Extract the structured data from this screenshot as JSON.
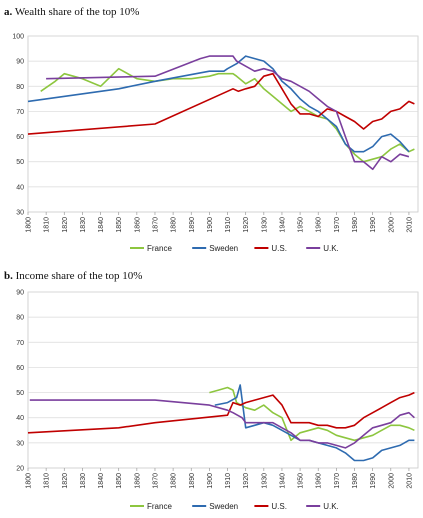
{
  "colors": {
    "France": "#8dc63f",
    "Sweden": "#2e6bb0",
    "U.S.": "#c00000",
    "U.K.": "#7a3f9d"
  },
  "chart_data": [
    {
      "type": "line",
      "title_prefix": "a.",
      "title": "Wealth share of the top 10%",
      "xlim": [
        1800,
        2015
      ],
      "ylim": [
        30,
        100
      ],
      "yticks": [
        30,
        40,
        50,
        60,
        70,
        80,
        90,
        100
      ],
      "xticks": [
        1800,
        1810,
        1820,
        1830,
        1840,
        1850,
        1860,
        1870,
        1880,
        1890,
        1900,
        1910,
        1920,
        1930,
        1940,
        1950,
        1960,
        1970,
        1980,
        1990,
        2000,
        2010
      ],
      "grid": "horizontal",
      "legend": "bottom",
      "series": [
        {
          "name": "France",
          "x": [
            1807,
            1815,
            1820,
            1830,
            1840,
            1850,
            1860,
            1870,
            1880,
            1890,
            1900,
            1905,
            1910,
            1913,
            1915,
            1920,
            1925,
            1930,
            1935,
            1940,
            1945,
            1950,
            1955,
            1960,
            1965,
            1970,
            1975,
            1980,
            1985,
            1990,
            1995,
            2000,
            2005,
            2010,
            2013
          ],
          "y": [
            78,
            82,
            85,
            83,
            80,
            87,
            83,
            82,
            83,
            83,
            84,
            85,
            85,
            85,
            84,
            81,
            83,
            79,
            76,
            73,
            70,
            72,
            70,
            68,
            67,
            63,
            57,
            53,
            50,
            51,
            52,
            55,
            57,
            54,
            55
          ]
        },
        {
          "name": "Sweden",
          "x": [
            1800,
            1850,
            1870,
            1900,
            1908,
            1910,
            1915,
            1920,
            1925,
            1930,
            1935,
            1940,
            1945,
            1950,
            1955,
            1960,
            1965,
            1970,
            1975,
            1980,
            1985,
            1990,
            1995,
            2000,
            2005,
            2010
          ],
          "y": [
            74,
            79,
            82,
            86,
            86,
            87,
            89,
            92,
            91,
            90,
            87,
            82,
            79,
            75,
            72,
            70,
            67,
            64,
            57,
            54,
            54,
            56,
            60,
            61,
            58,
            54
          ]
        },
        {
          "name": "U.S.",
          "x": [
            1800,
            1870,
            1910,
            1913,
            1916,
            1920,
            1925,
            1930,
            1935,
            1940,
            1945,
            1950,
            1955,
            1960,
            1965,
            1970,
            1975,
            1980,
            1985,
            1990,
            1995,
            2000,
            2005,
            2010,
            2013
          ],
          "y": [
            61,
            65,
            78,
            79,
            78,
            79,
            80,
            84,
            85,
            79,
            73,
            69,
            69,
            68,
            71,
            70,
            68,
            66,
            63,
            66,
            67,
            70,
            71,
            74,
            73
          ]
        },
        {
          "name": "U.K.",
          "x": [
            1810,
            1870,
            1895,
            1900,
            1905,
            1910,
            1913,
            1915,
            1920,
            1925,
            1930,
            1935,
            1940,
            1945,
            1950,
            1955,
            1960,
            1965,
            1970,
            1975,
            1980,
            1985,
            1990,
            1995,
            2000,
            2005,
            2010
          ],
          "y": [
            83,
            84,
            91,
            92,
            92,
            92,
            92,
            90,
            88,
            86,
            87,
            86,
            83,
            82,
            80,
            78,
            75,
            72,
            70,
            60,
            50,
            50,
            47,
            52,
            50,
            53,
            52
          ]
        }
      ]
    },
    {
      "type": "line",
      "title_prefix": "b.",
      "title": "Income share of the top 10%",
      "xlim": [
        1800,
        2015
      ],
      "ylim": [
        20,
        90
      ],
      "yticks": [
        20,
        30,
        40,
        50,
        60,
        70,
        80,
        90
      ],
      "xticks": [
        1800,
        1810,
        1820,
        1830,
        1840,
        1850,
        1860,
        1870,
        1880,
        1890,
        1900,
        1910,
        1920,
        1930,
        1940,
        1950,
        1960,
        1970,
        1980,
        1990,
        2000,
        2010
      ],
      "grid": "horizontal",
      "legend": "bottom",
      "series": [
        {
          "name": "France",
          "x": [
            1900,
            1905,
            1910,
            1913,
            1915,
            1920,
            1925,
            1930,
            1935,
            1940,
            1945,
            1950,
            1955,
            1960,
            1965,
            1970,
            1975,
            1980,
            1985,
            1990,
            1995,
            2000,
            2005,
            2010,
            2013
          ],
          "y": [
            50,
            51,
            52,
            51,
            46,
            44,
            43,
            45,
            42,
            40,
            31,
            34,
            35,
            36,
            35,
            33,
            32,
            31,
            32,
            33,
            35,
            37,
            37,
            36,
            35
          ]
        },
        {
          "name": "Sweden",
          "x": [
            1903,
            1910,
            1915,
            1917,
            1920,
            1925,
            1930,
            1935,
            1940,
            1945,
            1950,
            1955,
            1960,
            1965,
            1970,
            1975,
            1980,
            1985,
            1990,
            1995,
            2000,
            2005,
            2010,
            2013
          ],
          "y": [
            45,
            46,
            48,
            53,
            36,
            37,
            38,
            37,
            35,
            33,
            31,
            31,
            30,
            29,
            28,
            26,
            23,
            23,
            24,
            27,
            28,
            29,
            31,
            31
          ]
        },
        {
          "name": "U.S.",
          "x": [
            1800,
            1850,
            1870,
            1910,
            1913,
            1917,
            1920,
            1925,
            1930,
            1935,
            1940,
            1945,
            1950,
            1955,
            1960,
            1965,
            1970,
            1975,
            1980,
            1985,
            1990,
            1995,
            2000,
            2005,
            2010,
            2013
          ],
          "y": [
            34,
            36,
            38,
            41,
            46,
            45,
            46,
            47,
            48,
            49,
            45,
            38,
            38,
            38,
            37,
            37,
            36,
            36,
            37,
            40,
            42,
            44,
            46,
            48,
            49,
            50
          ]
        },
        {
          "name": "U.K.",
          "x": [
            1801,
            1850,
            1870,
            1900,
            1910,
            1913,
            1918,
            1920,
            1925,
            1930,
            1935,
            1940,
            1945,
            1950,
            1955,
            1960,
            1965,
            1970,
            1975,
            1980,
            1985,
            1990,
            1995,
            2000,
            2005,
            2010,
            2013
          ],
          "y": [
            47,
            47,
            47,
            45,
            43,
            42,
            40,
            38,
            38,
            38,
            38,
            36,
            34,
            31,
            31,
            30,
            30,
            29,
            28,
            30,
            33,
            36,
            37,
            38,
            41,
            42,
            40
          ]
        }
      ]
    }
  ]
}
